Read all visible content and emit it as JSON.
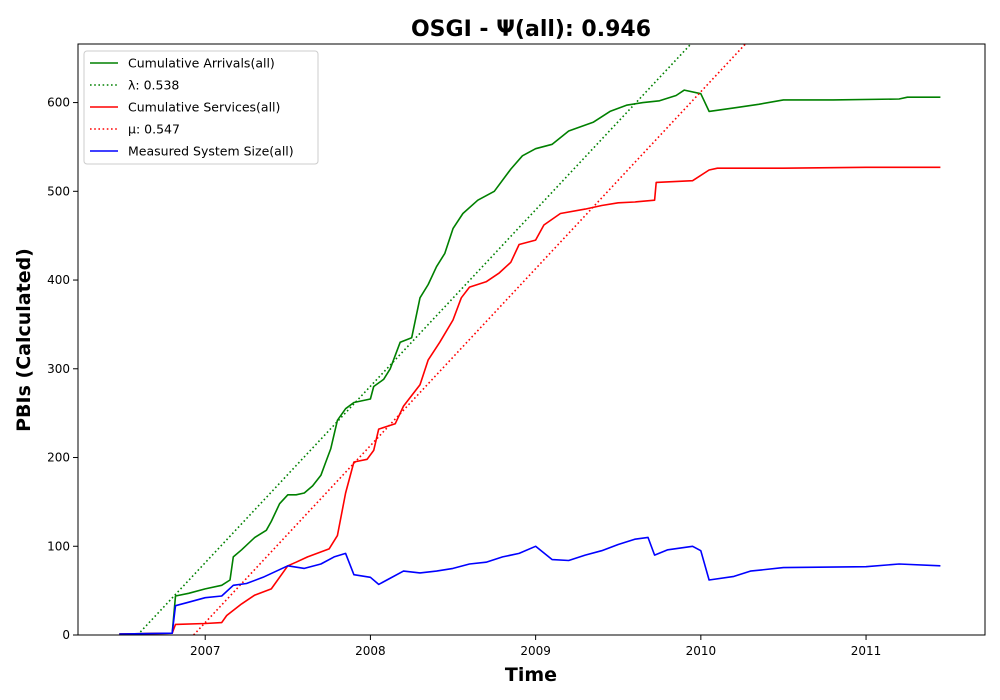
{
  "chart_data": {
    "type": "line",
    "title": "OSGI -  Ψ(all): 0.946",
    "xlabel": "Time",
    "ylabel": "PBIs (Calculated)",
    "xlim": [
      2006.23,
      2011.72
    ],
    "ylim": [
      0,
      666
    ],
    "x_ticks": [
      2007,
      2008,
      2009,
      2010,
      2011
    ],
    "x_tick_labels": [
      "2007",
      "2008",
      "2009",
      "2010",
      "2011"
    ],
    "y_ticks": [
      0,
      100,
      200,
      300,
      400,
      500,
      600
    ],
    "y_tick_labels": [
      "0",
      "100",
      "200",
      "300",
      "400",
      "500",
      "600"
    ],
    "grid": false,
    "legend_position": "top-left",
    "series": [
      {
        "name": "Cumulative Arrivals(all)",
        "color": "#008000",
        "style": "solid",
        "points": [
          [
            2006.48,
            1
          ],
          [
            2006.8,
            2
          ],
          [
            2006.82,
            44
          ],
          [
            2006.9,
            47
          ],
          [
            2007.0,
            52
          ],
          [
            2007.1,
            56
          ],
          [
            2007.15,
            62
          ],
          [
            2007.17,
            88
          ],
          [
            2007.22,
            96
          ],
          [
            2007.3,
            110
          ],
          [
            2007.37,
            118
          ],
          [
            2007.4,
            128
          ],
          [
            2007.45,
            148
          ],
          [
            2007.5,
            158
          ],
          [
            2007.55,
            158
          ],
          [
            2007.6,
            160
          ],
          [
            2007.65,
            168
          ],
          [
            2007.7,
            180
          ],
          [
            2007.73,
            195
          ],
          [
            2007.76,
            210
          ],
          [
            2007.8,
            242
          ],
          [
            2007.85,
            255
          ],
          [
            2007.9,
            262
          ],
          [
            2008.0,
            266
          ],
          [
            2008.02,
            280
          ],
          [
            2008.08,
            288
          ],
          [
            2008.12,
            300
          ],
          [
            2008.18,
            330
          ],
          [
            2008.25,
            335
          ],
          [
            2008.3,
            380
          ],
          [
            2008.35,
            395
          ],
          [
            2008.4,
            415
          ],
          [
            2008.45,
            430
          ],
          [
            2008.5,
            458
          ],
          [
            2008.56,
            475
          ],
          [
            2008.65,
            490
          ],
          [
            2008.75,
            500
          ],
          [
            2008.85,
            525
          ],
          [
            2008.92,
            540
          ],
          [
            2009.0,
            548
          ],
          [
            2009.1,
            553
          ],
          [
            2009.2,
            568
          ],
          [
            2009.35,
            578
          ],
          [
            2009.45,
            590
          ],
          [
            2009.55,
            597
          ],
          [
            2009.65,
            600
          ],
          [
            2009.75,
            602
          ],
          [
            2009.85,
            608
          ],
          [
            2009.9,
            614
          ],
          [
            2010.0,
            610
          ],
          [
            2010.05,
            590
          ],
          [
            2010.2,
            594
          ],
          [
            2010.35,
            598
          ],
          [
            2010.5,
            603
          ],
          [
            2010.8,
            603
          ],
          [
            2011.2,
            604
          ],
          [
            2011.25,
            606
          ],
          [
            2011.45,
            606
          ]
        ]
      },
      {
        "name": "λ: 0.538",
        "color": "#008000",
        "style": "dotted",
        "points": [
          [
            2006.59,
            0
          ],
          [
            2009.94,
            666
          ]
        ]
      },
      {
        "name": "Cumulative Services(all)",
        "color": "#ff0000",
        "style": "solid",
        "points": [
          [
            2006.48,
            1
          ],
          [
            2006.8,
            2
          ],
          [
            2006.82,
            12
          ],
          [
            2007.0,
            13
          ],
          [
            2007.1,
            14
          ],
          [
            2007.13,
            22
          ],
          [
            2007.22,
            35
          ],
          [
            2007.3,
            45
          ],
          [
            2007.4,
            52
          ],
          [
            2007.5,
            78
          ],
          [
            2007.55,
            82
          ],
          [
            2007.62,
            88
          ],
          [
            2007.75,
            97
          ],
          [
            2007.8,
            112
          ],
          [
            2007.85,
            160
          ],
          [
            2007.9,
            195
          ],
          [
            2007.98,
            198
          ],
          [
            2008.02,
            208
          ],
          [
            2008.05,
            232
          ],
          [
            2008.15,
            238
          ],
          [
            2008.2,
            258
          ],
          [
            2008.3,
            282
          ],
          [
            2008.35,
            310
          ],
          [
            2008.42,
            330
          ],
          [
            2008.5,
            355
          ],
          [
            2008.55,
            380
          ],
          [
            2008.6,
            392
          ],
          [
            2008.7,
            398
          ],
          [
            2008.78,
            408
          ],
          [
            2008.85,
            420
          ],
          [
            2008.9,
            440
          ],
          [
            2009.0,
            445
          ],
          [
            2009.05,
            462
          ],
          [
            2009.15,
            475
          ],
          [
            2009.3,
            480
          ],
          [
            2009.4,
            484
          ],
          [
            2009.5,
            487
          ],
          [
            2009.6,
            488
          ],
          [
            2009.72,
            490
          ],
          [
            2009.73,
            510
          ],
          [
            2009.95,
            512
          ],
          [
            2010.05,
            524
          ],
          [
            2010.1,
            526
          ],
          [
            2010.5,
            526
          ],
          [
            2011.0,
            527
          ],
          [
            2011.45,
            527
          ]
        ]
      },
      {
        "name": "μ: 0.547",
        "color": "#ff0000",
        "style": "dotted",
        "points": [
          [
            2006.93,
            0
          ],
          [
            2010.27,
            666
          ]
        ]
      },
      {
        "name": "Measured System Size(all)",
        "color": "#0000ff",
        "style": "solid",
        "points": [
          [
            2006.48,
            1
          ],
          [
            2006.8,
            2
          ],
          [
            2006.82,
            33
          ],
          [
            2006.9,
            37
          ],
          [
            2007.0,
            42
          ],
          [
            2007.1,
            44
          ],
          [
            2007.17,
            56
          ],
          [
            2007.25,
            58
          ],
          [
            2007.35,
            65
          ],
          [
            2007.5,
            78
          ],
          [
            2007.6,
            75
          ],
          [
            2007.7,
            80
          ],
          [
            2007.78,
            88
          ],
          [
            2007.85,
            92
          ],
          [
            2007.9,
            68
          ],
          [
            2008.0,
            65
          ],
          [
            2008.05,
            57
          ],
          [
            2008.1,
            62
          ],
          [
            2008.2,
            72
          ],
          [
            2008.3,
            70
          ],
          [
            2008.4,
            72
          ],
          [
            2008.5,
            75
          ],
          [
            2008.6,
            80
          ],
          [
            2008.7,
            82
          ],
          [
            2008.8,
            88
          ],
          [
            2008.9,
            92
          ],
          [
            2009.0,
            100
          ],
          [
            2009.1,
            85
          ],
          [
            2009.2,
            84
          ],
          [
            2009.3,
            90
          ],
          [
            2009.4,
            95
          ],
          [
            2009.5,
            102
          ],
          [
            2009.6,
            108
          ],
          [
            2009.68,
            110
          ],
          [
            2009.72,
            90
          ],
          [
            2009.8,
            96
          ],
          [
            2009.95,
            100
          ],
          [
            2010.0,
            95
          ],
          [
            2010.05,
            62
          ],
          [
            2010.2,
            66
          ],
          [
            2010.3,
            72
          ],
          [
            2010.5,
            76
          ],
          [
            2011.0,
            77
          ],
          [
            2011.2,
            80
          ],
          [
            2011.45,
            78
          ]
        ]
      }
    ]
  }
}
